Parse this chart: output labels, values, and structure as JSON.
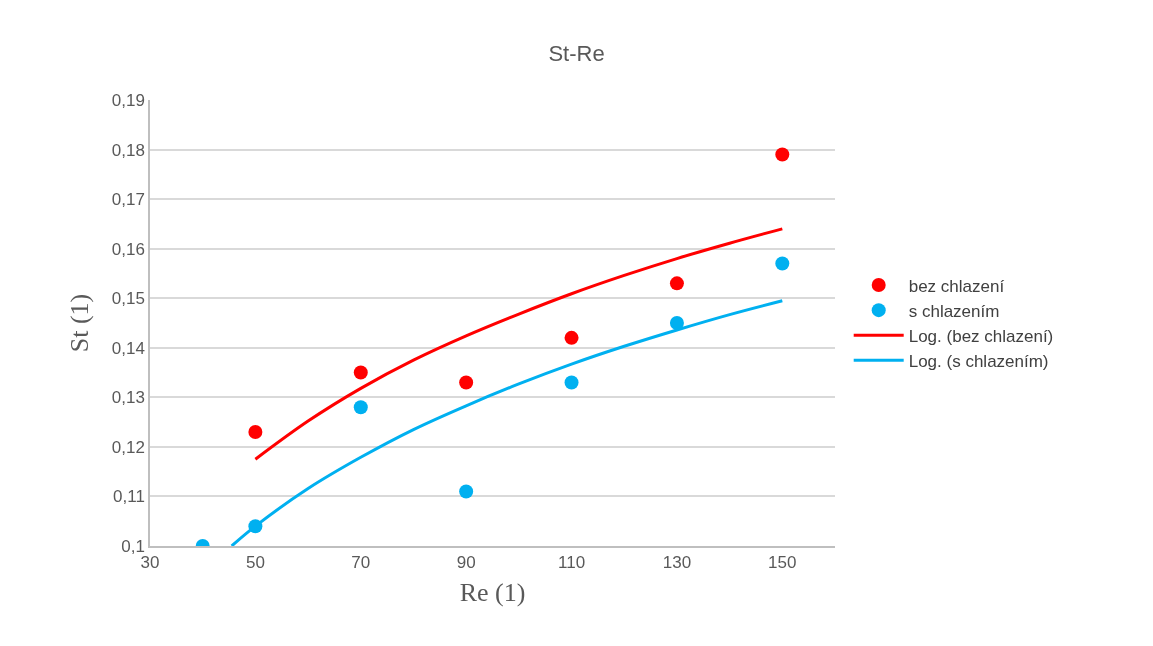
{
  "chart_data": {
    "type": "scatter",
    "title": "St-Re",
    "xlabel": "Re (1)",
    "ylabel": "St (1)",
    "series": [
      {
        "name": "bez chlazení",
        "color": "#ff0000",
        "x": [
          50,
          70,
          90,
          110,
          130,
          150
        ],
        "values": [
          0.123,
          0.135,
          0.133,
          0.142,
          0.153,
          0.179
        ]
      },
      {
        "name": "s chlazením",
        "color": "#00b0f0",
        "x": [
          40,
          50,
          70,
          90,
          110,
          130,
          150
        ],
        "values": [
          0.1,
          0.104,
          0.128,
          0.111,
          0.133,
          0.145,
          0.157
        ]
      },
      {
        "name": "Log. (bez chlazení)",
        "type": "line",
        "marker": "none",
        "color": "#ff0000",
        "x": [
          50,
          60,
          70,
          80,
          90,
          100,
          110,
          120,
          130,
          140,
          150
        ],
        "values": [
          0.1175,
          0.1252,
          0.1318,
          0.1375,
          0.1424,
          0.1468,
          0.1509,
          0.1546,
          0.158,
          0.1611,
          0.164
        ]
      },
      {
        "name": "Log. (s chlazením)",
        "type": "line",
        "marker": "none",
        "color": "#00b0f0",
        "x": [
          45.5,
          50,
          60,
          70,
          80,
          90,
          100,
          110,
          120,
          130,
          140,
          150
        ],
        "values": [
          0.1,
          0.104,
          0.1116,
          0.1179,
          0.1235,
          0.1283,
          0.1327,
          0.1367,
          0.1403,
          0.1436,
          0.1467,
          0.1495
        ]
      }
    ],
    "xlim": [
      30,
      160
    ],
    "xticks": [
      30,
      50,
      70,
      90,
      110,
      130,
      150
    ],
    "ylim": [
      0.1,
      0.19
    ],
    "yticks": [
      {
        "value": 0.1,
        "label": "0,1"
      },
      {
        "value": 0.11,
        "label": "0,11"
      },
      {
        "value": 0.12,
        "label": "0,12"
      },
      {
        "value": 0.13,
        "label": "0,13"
      },
      {
        "value": 0.14,
        "label": "0,14"
      },
      {
        "value": 0.15,
        "label": "0,15"
      },
      {
        "value": 0.16,
        "label": "0,16"
      },
      {
        "value": 0.17,
        "label": "0,17"
      },
      {
        "value": 0.18,
        "label": "0,18"
      },
      {
        "value": 0.19,
        "label": "0,19"
      }
    ],
    "grid": "y",
    "legend": "right",
    "marker": "circle",
    "line_style": "solid"
  }
}
